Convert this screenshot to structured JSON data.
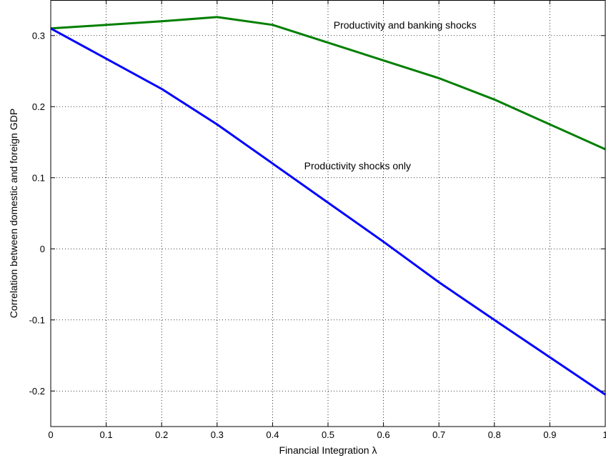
{
  "chart_data": {
    "type": "line",
    "title": "",
    "xlabel": "Financial Integration λ",
    "ylabel": "Correlation between domestic and foreign GDP",
    "xlim": [
      0,
      1
    ],
    "ylim": [
      -0.25,
      0.35
    ],
    "xticks": [
      0,
      0.1,
      0.2,
      0.3,
      0.4,
      0.5,
      0.6,
      0.7,
      0.8,
      0.9,
      1
    ],
    "xtick_labels": [
      "0",
      "0.1",
      "0.2",
      "0.3",
      "0.4",
      "0.5",
      "0.6",
      "0.7",
      "0.8",
      "0.9",
      "1"
    ],
    "yticks": [
      -0.2,
      -0.1,
      0,
      0.1,
      0.2,
      0.3
    ],
    "ytick_labels": [
      "-0.2",
      "-0.1",
      "0",
      "0.1",
      "0.2",
      "0.3"
    ],
    "grid": true,
    "series": [
      {
        "color": "#007f00",
        "x": [
          0,
          0.2,
          0.3,
          0.4,
          0.5,
          0.7,
          0.8,
          1
        ],
        "y": [
          0.31,
          0.32,
          0.326,
          0.315,
          0.29,
          0.24,
          0.21,
          0.14
        ]
      },
      {
        "color": "#0000ff",
        "x": [
          0,
          0.2,
          0.3,
          0.4,
          0.5,
          0.6,
          0.7,
          0.8,
          1
        ],
        "y": [
          0.31,
          0.225,
          0.175,
          0.12,
          0.065,
          0.01,
          -0.047,
          -0.1,
          -0.205
        ]
      }
    ],
    "annotations": [
      {
        "text": "Productivity and banking shocks",
        "x": 0.51,
        "y": 0.31
      },
      {
        "text": "Productivity shocks only",
        "x": 0.457,
        "y": 0.112
      }
    ]
  }
}
